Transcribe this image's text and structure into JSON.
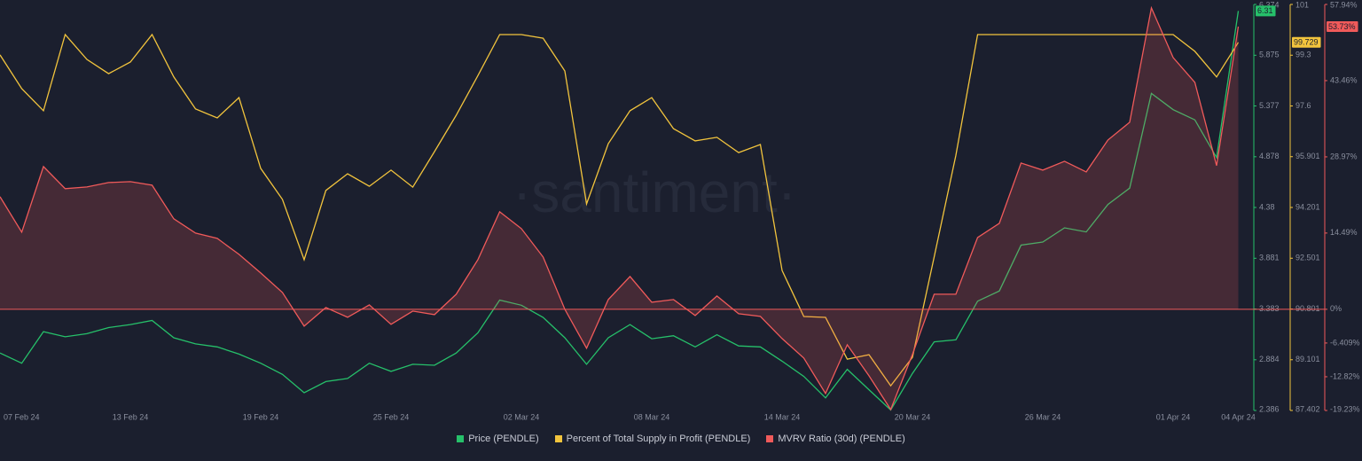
{
  "chart_data": {
    "type": "line",
    "watermark": "·santiment·",
    "legend": "bottom",
    "categories": [
      "07 Feb 24",
      null,
      null,
      null,
      null,
      null,
      "13 Feb 24",
      null,
      null,
      null,
      null,
      null,
      "19 Feb 24",
      null,
      null,
      null,
      null,
      null,
      "25 Feb 24",
      null,
      null,
      null,
      null,
      null,
      "02 Mar 24",
      null,
      null,
      null,
      null,
      null,
      "08 Mar 24",
      null,
      null,
      null,
      null,
      null,
      "14 Mar 24",
      null,
      null,
      null,
      null,
      null,
      "20 Mar 24",
      null,
      null,
      null,
      null,
      null,
      "26 Mar 24",
      null,
      null,
      null,
      null,
      null,
      "01 Apr 24",
      null,
      null,
      "04 Apr 24"
    ],
    "series": [
      {
        "name": "Price (PENDLE)",
        "color": "#26c06a",
        "axis": "y",
        "last_value_label": "6.31",
        "values": [
          2.95,
          2.85,
          3.16,
          3.11,
          3.14,
          3.2,
          3.23,
          3.27,
          3.1,
          3.04,
          3.01,
          2.94,
          2.85,
          2.74,
          2.56,
          2.67,
          2.7,
          2.85,
          2.77,
          2.84,
          2.83,
          2.95,
          3.15,
          3.47,
          3.42,
          3.3,
          3.1,
          2.84,
          3.1,
          3.23,
          3.09,
          3.12,
          3.01,
          3.13,
          3.02,
          3.01,
          2.87,
          2.72,
          2.51,
          2.79,
          2.59,
          2.39,
          2.75,
          3.06,
          3.08,
          3.46,
          3.56,
          4.01,
          4.04,
          4.18,
          4.14,
          4.41,
          4.57,
          5.5,
          5.34,
          5.24,
          4.87,
          6.31
        ]
      },
      {
        "name": "Percent of Total Supply in Profit (PENDLE)",
        "color": "#f2c43d",
        "axis": "y2",
        "last_value_label": "99.729",
        "values": [
          99.31,
          98.18,
          97.44,
          99.99,
          99.16,
          98.68,
          99.07,
          99.99,
          98.57,
          97.5,
          97.2,
          97.88,
          95.51,
          94.47,
          92.45,
          94.77,
          95.33,
          94.91,
          95.45,
          94.88,
          96.07,
          97.29,
          98.62,
          99.99,
          99.99,
          99.87,
          98.77,
          94.32,
          96.34,
          97.44,
          97.88,
          96.84,
          96.43,
          96.55,
          96.04,
          96.31,
          92.09,
          90.55,
          90.52,
          89.12,
          89.27,
          88.23,
          89.18,
          92.54,
          95.95,
          99.99,
          99.99,
          99.99,
          99.99,
          99.99,
          99.99,
          99.99,
          99.99,
          99.99,
          99.99,
          99.43,
          98.57,
          99.729
        ]
      },
      {
        "name": "MVRV Ratio (30d) (PENDLE)",
        "color": "#f05a5a",
        "axis": "y3",
        "area": true,
        "last_value_label": "53.73%",
        "values": [
          21.4,
          14.66,
          27.13,
          22.92,
          23.25,
          24.09,
          24.26,
          23.59,
          17.19,
          14.49,
          13.48,
          10.45,
          6.91,
          3.2,
          -3.2,
          0.34,
          -1.52,
          0.84,
          -2.86,
          -0.34,
          -1.01,
          2.86,
          9.44,
          18.53,
          15.33,
          9.94,
          0,
          -7.41,
          1.85,
          6.23,
          1.35,
          1.85,
          -1.18,
          2.53,
          -0.84,
          -1.35,
          -5.56,
          -9.27,
          -16.01,
          -6.74,
          -12.64,
          -19.04,
          -8.59,
          2.86,
          2.86,
          13.65,
          16.34,
          27.8,
          26.45,
          28.14,
          26.12,
          32.18,
          35.55,
          57.29,
          47.85,
          43.13,
          27.3,
          53.73
        ]
      }
    ],
    "ylim": [
      2.386,
      6.374
    ],
    "yticks": [
      2.386,
      2.884,
      3.383,
      3.881,
      4.38,
      4.878,
      5.377,
      5.875,
      6.374
    ],
    "y2lim": [
      87.402,
      101
    ],
    "y2ticks": [
      87.402,
      89.101,
      90.801,
      92.501,
      94.201,
      95.901,
      97.6,
      99.3,
      101
    ],
    "y3lim": [
      -19.23,
      57.94
    ],
    "y3ticks": [
      {
        "value": -19.23,
        "label": "-19.23%"
      },
      {
        "value": -12.82,
        "label": "-12.82%"
      },
      {
        "value": -6.409,
        "label": "-6.409%"
      },
      {
        "value": 0,
        "label": "0%"
      },
      {
        "value": 14.49,
        "label": "14.49%"
      },
      {
        "value": 28.97,
        "label": "28.97%"
      },
      {
        "value": 43.46,
        "label": "43.46%"
      },
      {
        "value": 57.94,
        "label": "57.94%"
      }
    ]
  }
}
